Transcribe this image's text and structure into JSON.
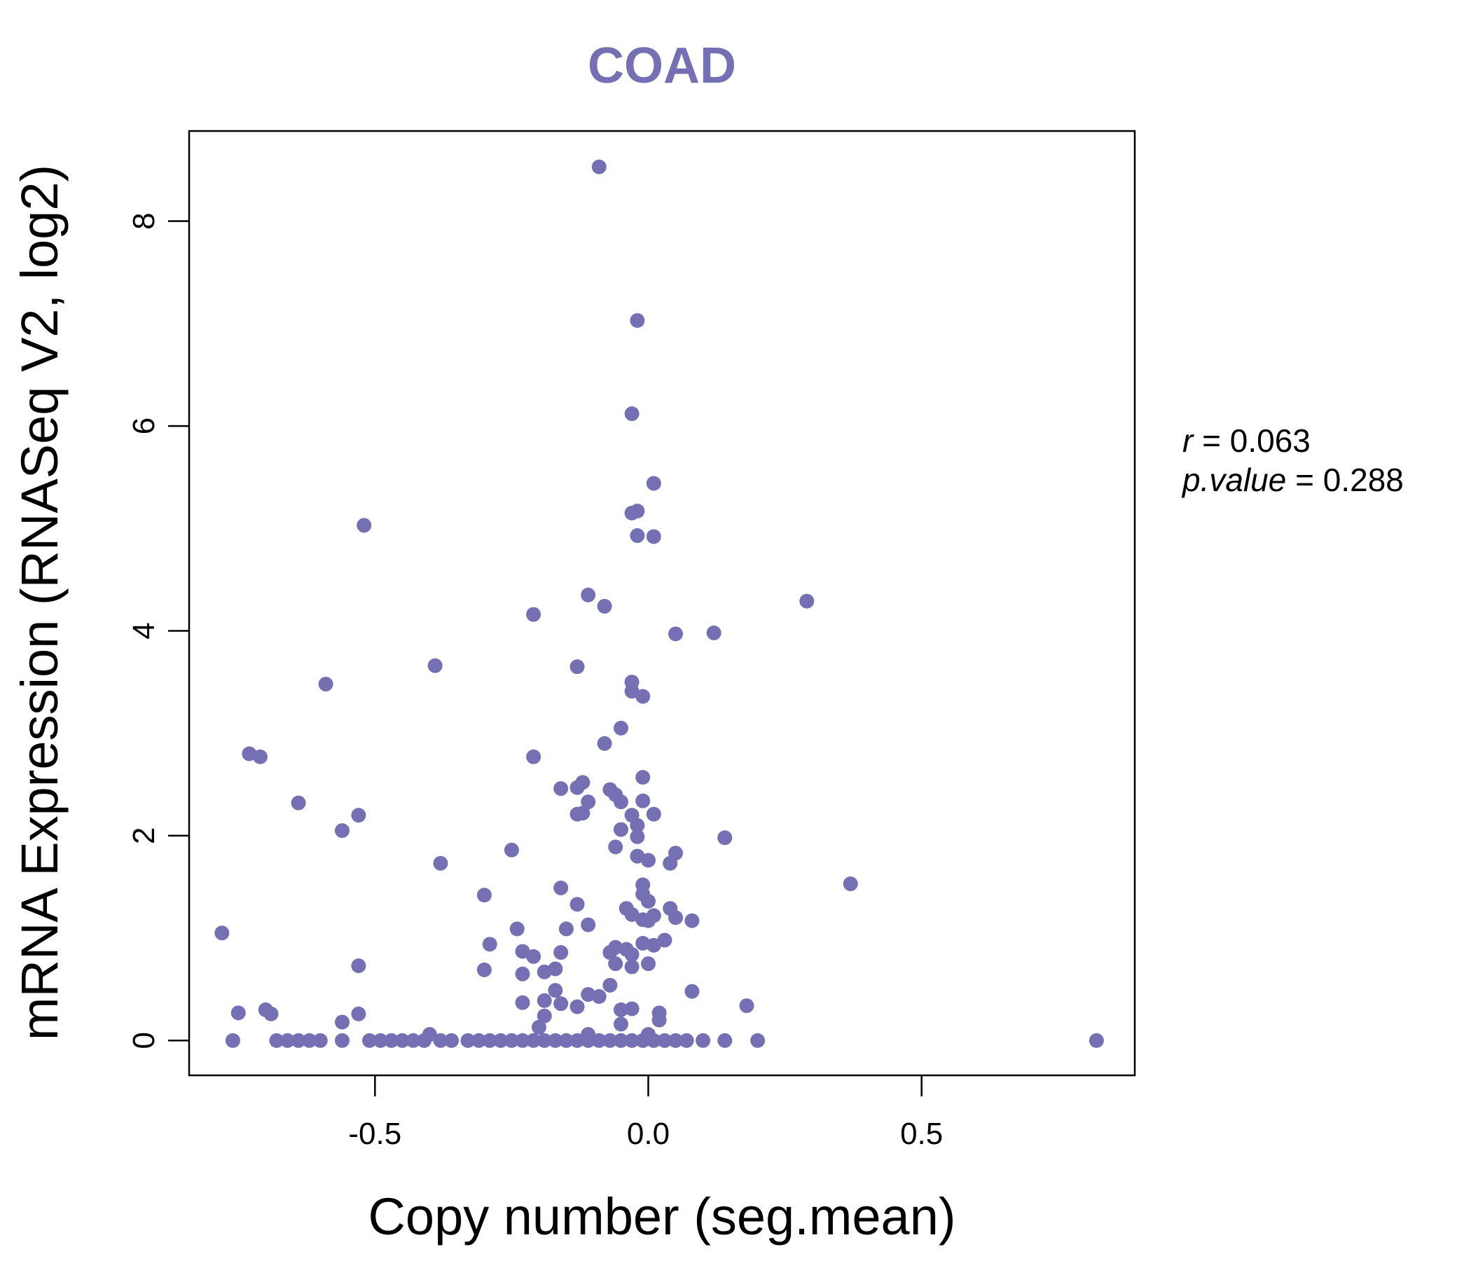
{
  "chart_data": {
    "type": "scatter",
    "title": "COAD",
    "xlabel": "Copy number (seg.mean)",
    "ylabel": "mRNA Expression (RNASeq V2, log2)",
    "xlim": [
      -0.84,
      0.89
    ],
    "ylim": [
      -0.34,
      8.88
    ],
    "x_ticks": [
      -0.5,
      0.0,
      0.5
    ],
    "x_tick_labels": [
      "-0.5",
      "0.0",
      "0.5"
    ],
    "y_ticks": [
      0,
      2,
      4,
      6,
      8
    ],
    "y_tick_labels": [
      "0",
      "2",
      "4",
      "6",
      "8"
    ],
    "grid": false,
    "legend": "none",
    "point_color": "#7570b3",
    "title_color": "#7570b3",
    "annotation": {
      "r_label": "r",
      "r_value": "0.063",
      "p_label": "p.value",
      "p_value": "0.288"
    },
    "points": [
      {
        "x": -0.09,
        "y": 8.53
      },
      {
        "x": -0.02,
        "y": 7.03
      },
      {
        "x": -0.03,
        "y": 6.12
      },
      {
        "x": 0.01,
        "y": 5.44
      },
      {
        "x": -0.03,
        "y": 5.15
      },
      {
        "x": -0.02,
        "y": 5.17
      },
      {
        "x": -0.52,
        "y": 5.03
      },
      {
        "x": -0.02,
        "y": 4.93
      },
      {
        "x": 0.01,
        "y": 4.92
      },
      {
        "x": -0.11,
        "y": 4.35
      },
      {
        "x": -0.08,
        "y": 4.24
      },
      {
        "x": 0.29,
        "y": 4.29
      },
      {
        "x": -0.21,
        "y": 4.16
      },
      {
        "x": 0.05,
        "y": 3.97
      },
      {
        "x": 0.12,
        "y": 3.98
      },
      {
        "x": -0.39,
        "y": 3.66
      },
      {
        "x": -0.13,
        "y": 3.65
      },
      {
        "x": -0.59,
        "y": 3.48
      },
      {
        "x": -0.03,
        "y": 3.5
      },
      {
        "x": -0.03,
        "y": 3.41
      },
      {
        "x": -0.01,
        "y": 3.36
      },
      {
        "x": -0.05,
        "y": 3.05
      },
      {
        "x": -0.08,
        "y": 2.9
      },
      {
        "x": -0.73,
        "y": 2.8
      },
      {
        "x": -0.71,
        "y": 2.77
      },
      {
        "x": -0.21,
        "y": 2.77
      },
      {
        "x": -0.01,
        "y": 2.57
      },
      {
        "x": -0.12,
        "y": 2.52
      },
      {
        "x": -0.13,
        "y": 2.47
      },
      {
        "x": -0.16,
        "y": 2.46
      },
      {
        "x": -0.07,
        "y": 2.45
      },
      {
        "x": -0.06,
        "y": 2.4
      },
      {
        "x": -0.05,
        "y": 2.33
      },
      {
        "x": -0.11,
        "y": 2.33
      },
      {
        "x": -0.01,
        "y": 2.34
      },
      {
        "x": -0.64,
        "y": 2.32
      },
      {
        "x": -0.53,
        "y": 2.2
      },
      {
        "x": -0.12,
        "y": 2.22
      },
      {
        "x": -0.13,
        "y": 2.21
      },
      {
        "x": -0.03,
        "y": 2.2
      },
      {
        "x": 0.01,
        "y": 2.21
      },
      {
        "x": -0.02,
        "y": 2.1
      },
      {
        "x": -0.05,
        "y": 2.06
      },
      {
        "x": -0.56,
        "y": 2.05
      },
      {
        "x": -0.02,
        "y": 1.99
      },
      {
        "x": 0.14,
        "y": 1.98
      },
      {
        "x": -0.06,
        "y": 1.89
      },
      {
        "x": -0.25,
        "y": 1.86
      },
      {
        "x": 0.05,
        "y": 1.83
      },
      {
        "x": -0.02,
        "y": 1.8
      },
      {
        "x": 0.0,
        "y": 1.76
      },
      {
        "x": -0.38,
        "y": 1.73
      },
      {
        "x": 0.04,
        "y": 1.73
      },
      {
        "x": 0.37,
        "y": 1.53
      },
      {
        "x": -0.01,
        "y": 1.52
      },
      {
        "x": -0.16,
        "y": 1.49
      },
      {
        "x": -0.01,
        "y": 1.43
      },
      {
        "x": -0.3,
        "y": 1.42
      },
      {
        "x": 0.0,
        "y": 1.36
      },
      {
        "x": -0.13,
        "y": 1.33
      },
      {
        "x": -0.04,
        "y": 1.29
      },
      {
        "x": 0.04,
        "y": 1.29
      },
      {
        "x": -0.03,
        "y": 1.23
      },
      {
        "x": 0.01,
        "y": 1.22
      },
      {
        "x": -0.01,
        "y": 1.18
      },
      {
        "x": 0.0,
        "y": 1.17
      },
      {
        "x": 0.05,
        "y": 1.2
      },
      {
        "x": 0.08,
        "y": 1.17
      },
      {
        "x": -0.11,
        "y": 1.13
      },
      {
        "x": -0.15,
        "y": 1.09
      },
      {
        "x": -0.24,
        "y": 1.09
      },
      {
        "x": -0.78,
        "y": 1.05
      },
      {
        "x": 0.03,
        "y": 0.98
      },
      {
        "x": -0.29,
        "y": 0.94
      },
      {
        "x": -0.01,
        "y": 0.95
      },
      {
        "x": 0.01,
        "y": 0.93
      },
      {
        "x": -0.06,
        "y": 0.91
      },
      {
        "x": -0.04,
        "y": 0.89
      },
      {
        "x": -0.23,
        "y": 0.87
      },
      {
        "x": -0.07,
        "y": 0.86
      },
      {
        "x": -0.16,
        "y": 0.86
      },
      {
        "x": -0.21,
        "y": 0.82
      },
      {
        "x": -0.03,
        "y": 0.84
      },
      {
        "x": -0.06,
        "y": 0.75
      },
      {
        "x": -0.53,
        "y": 0.73
      },
      {
        "x": 0.0,
        "y": 0.75
      },
      {
        "x": -0.03,
        "y": 0.72
      },
      {
        "x": -0.3,
        "y": 0.69
      },
      {
        "x": -0.17,
        "y": 0.7
      },
      {
        "x": -0.19,
        "y": 0.67
      },
      {
        "x": -0.23,
        "y": 0.65
      },
      {
        "x": -0.07,
        "y": 0.54
      },
      {
        "x": 0.08,
        "y": 0.48
      },
      {
        "x": -0.17,
        "y": 0.49
      },
      {
        "x": -0.11,
        "y": 0.45
      },
      {
        "x": -0.09,
        "y": 0.43
      },
      {
        "x": -0.19,
        "y": 0.39
      },
      {
        "x": -0.23,
        "y": 0.37
      },
      {
        "x": -0.16,
        "y": 0.36
      },
      {
        "x": 0.18,
        "y": 0.34
      },
      {
        "x": -0.13,
        "y": 0.33
      },
      {
        "x": -0.7,
        "y": 0.3
      },
      {
        "x": -0.05,
        "y": 0.3
      },
      {
        "x": -0.03,
        "y": 0.31
      },
      {
        "x": 0.02,
        "y": 0.27
      },
      {
        "x": -0.75,
        "y": 0.27
      },
      {
        "x": -0.69,
        "y": 0.26
      },
      {
        "x": -0.53,
        "y": 0.26
      },
      {
        "x": -0.19,
        "y": 0.24
      },
      {
        "x": 0.02,
        "y": 0.2
      },
      {
        "x": -0.56,
        "y": 0.18
      },
      {
        "x": -0.05,
        "y": 0.16
      },
      {
        "x": -0.2,
        "y": 0.13
      },
      {
        "x": -0.4,
        "y": 0.06
      },
      {
        "x": -0.11,
        "y": 0.06
      },
      {
        "x": 0.0,
        "y": 0.06
      },
      {
        "x": -0.76,
        "y": 0.0
      },
      {
        "x": -0.68,
        "y": 0.0
      },
      {
        "x": -0.66,
        "y": 0.0
      },
      {
        "x": -0.64,
        "y": 0.0
      },
      {
        "x": -0.62,
        "y": 0.0
      },
      {
        "x": -0.6,
        "y": 0.0
      },
      {
        "x": -0.56,
        "y": 0.0
      },
      {
        "x": -0.51,
        "y": 0.0
      },
      {
        "x": -0.49,
        "y": 0.0
      },
      {
        "x": -0.47,
        "y": 0.0
      },
      {
        "x": -0.45,
        "y": 0.0
      },
      {
        "x": -0.43,
        "y": 0.0
      },
      {
        "x": -0.41,
        "y": 0.0
      },
      {
        "x": -0.38,
        "y": 0.0
      },
      {
        "x": -0.36,
        "y": 0.0
      },
      {
        "x": -0.33,
        "y": 0.0
      },
      {
        "x": -0.31,
        "y": 0.0
      },
      {
        "x": -0.29,
        "y": 0.0
      },
      {
        "x": -0.27,
        "y": 0.0
      },
      {
        "x": -0.25,
        "y": 0.0
      },
      {
        "x": -0.23,
        "y": 0.0
      },
      {
        "x": -0.21,
        "y": 0.0
      },
      {
        "x": -0.19,
        "y": 0.0
      },
      {
        "x": -0.17,
        "y": 0.0
      },
      {
        "x": -0.15,
        "y": 0.0
      },
      {
        "x": -0.13,
        "y": 0.0
      },
      {
        "x": -0.11,
        "y": 0.0
      },
      {
        "x": -0.09,
        "y": 0.0
      },
      {
        "x": -0.07,
        "y": 0.0
      },
      {
        "x": -0.05,
        "y": 0.0
      },
      {
        "x": -0.03,
        "y": 0.0
      },
      {
        "x": -0.01,
        "y": 0.0
      },
      {
        "x": 0.01,
        "y": 0.0
      },
      {
        "x": 0.03,
        "y": 0.0
      },
      {
        "x": 0.05,
        "y": 0.0
      },
      {
        "x": 0.07,
        "y": 0.0
      },
      {
        "x": 0.1,
        "y": 0.0
      },
      {
        "x": 0.14,
        "y": 0.0
      },
      {
        "x": 0.2,
        "y": 0.0
      },
      {
        "x": 0.82,
        "y": 0.0
      }
    ]
  }
}
